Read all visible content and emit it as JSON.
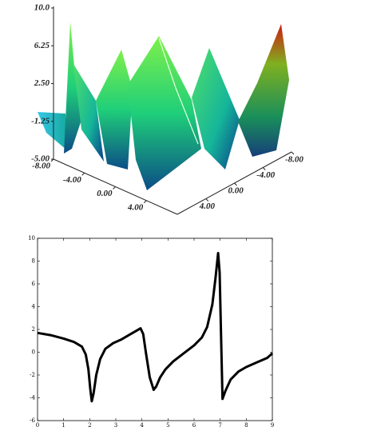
{
  "chart_data": [
    {
      "type": "surface3d",
      "xlim": [
        -8,
        8
      ],
      "ylim": [
        -8,
        8
      ],
      "zlim": [
        -5,
        10
      ],
      "xticks": [
        {
          "value": -8,
          "label": "-8.00"
        },
        {
          "value": -4,
          "label": "-4.00"
        },
        {
          "value": 0,
          "label": "0.00"
        },
        {
          "value": 4,
          "label": "4.00"
        }
      ],
      "yticks": [
        {
          "value": -8,
          "label": "-8.00"
        },
        {
          "value": -4,
          "label": "-4.00"
        },
        {
          "value": 0,
          "label": "0.00"
        },
        {
          "value": 4,
          "label": "4.00"
        }
      ],
      "zticks": [
        {
          "value": 10,
          "label": "10.0"
        },
        {
          "value": 6.25,
          "label": "6.25"
        },
        {
          "value": 2.5,
          "label": "2.50"
        },
        {
          "value": -1.25,
          "label": "-1.25"
        },
        {
          "value": -5,
          "label": "-5.00"
        }
      ]
    },
    {
      "type": "line",
      "color": "#000000",
      "x": [
        0,
        0.5,
        1,
        1.4,
        1.7,
        1.85,
        1.95,
        2.02,
        2.08,
        2.15,
        2.25,
        2.4,
        2.6,
        2.9,
        3.2,
        3.5,
        3.8,
        3.95,
        4.05,
        4.15,
        4.3,
        4.45,
        4.55,
        4.7,
        4.9,
        5.2,
        5.6,
        6.0,
        6.3,
        6.5,
        6.7,
        6.82,
        6.92,
        6.98,
        7.03,
        7.09,
        7.2,
        7.4,
        7.7,
        8.0,
        8.4,
        8.8,
        9
      ],
      "values": [
        1.7,
        1.5,
        1.2,
        0.9,
        0.5,
        -0.2,
        -1.5,
        -3.2,
        -4.3,
        -3.6,
        -2,
        -0.6,
        0.3,
        0.8,
        1.1,
        1.5,
        1.9,
        2.1,
        1.6,
        0,
        -2.2,
        -3.3,
        -3.0,
        -2.2,
        -1.5,
        -0.8,
        -0.1,
        0.6,
        1.3,
        2.2,
        4.2,
        6.5,
        8.7,
        7,
        2,
        -4.1,
        -3.4,
        -2.4,
        -1.7,
        -1.3,
        -0.9,
        -0.5,
        -0.1
      ],
      "xlim": [
        0,
        9
      ],
      "ylim": [
        -6,
        10
      ],
      "xticks": [
        0,
        1,
        2,
        3,
        4,
        5,
        6,
        7,
        8,
        9
      ],
      "yticks": [
        -6,
        -4,
        -2,
        0,
        2,
        4,
        6,
        8,
        10
      ]
    }
  ]
}
